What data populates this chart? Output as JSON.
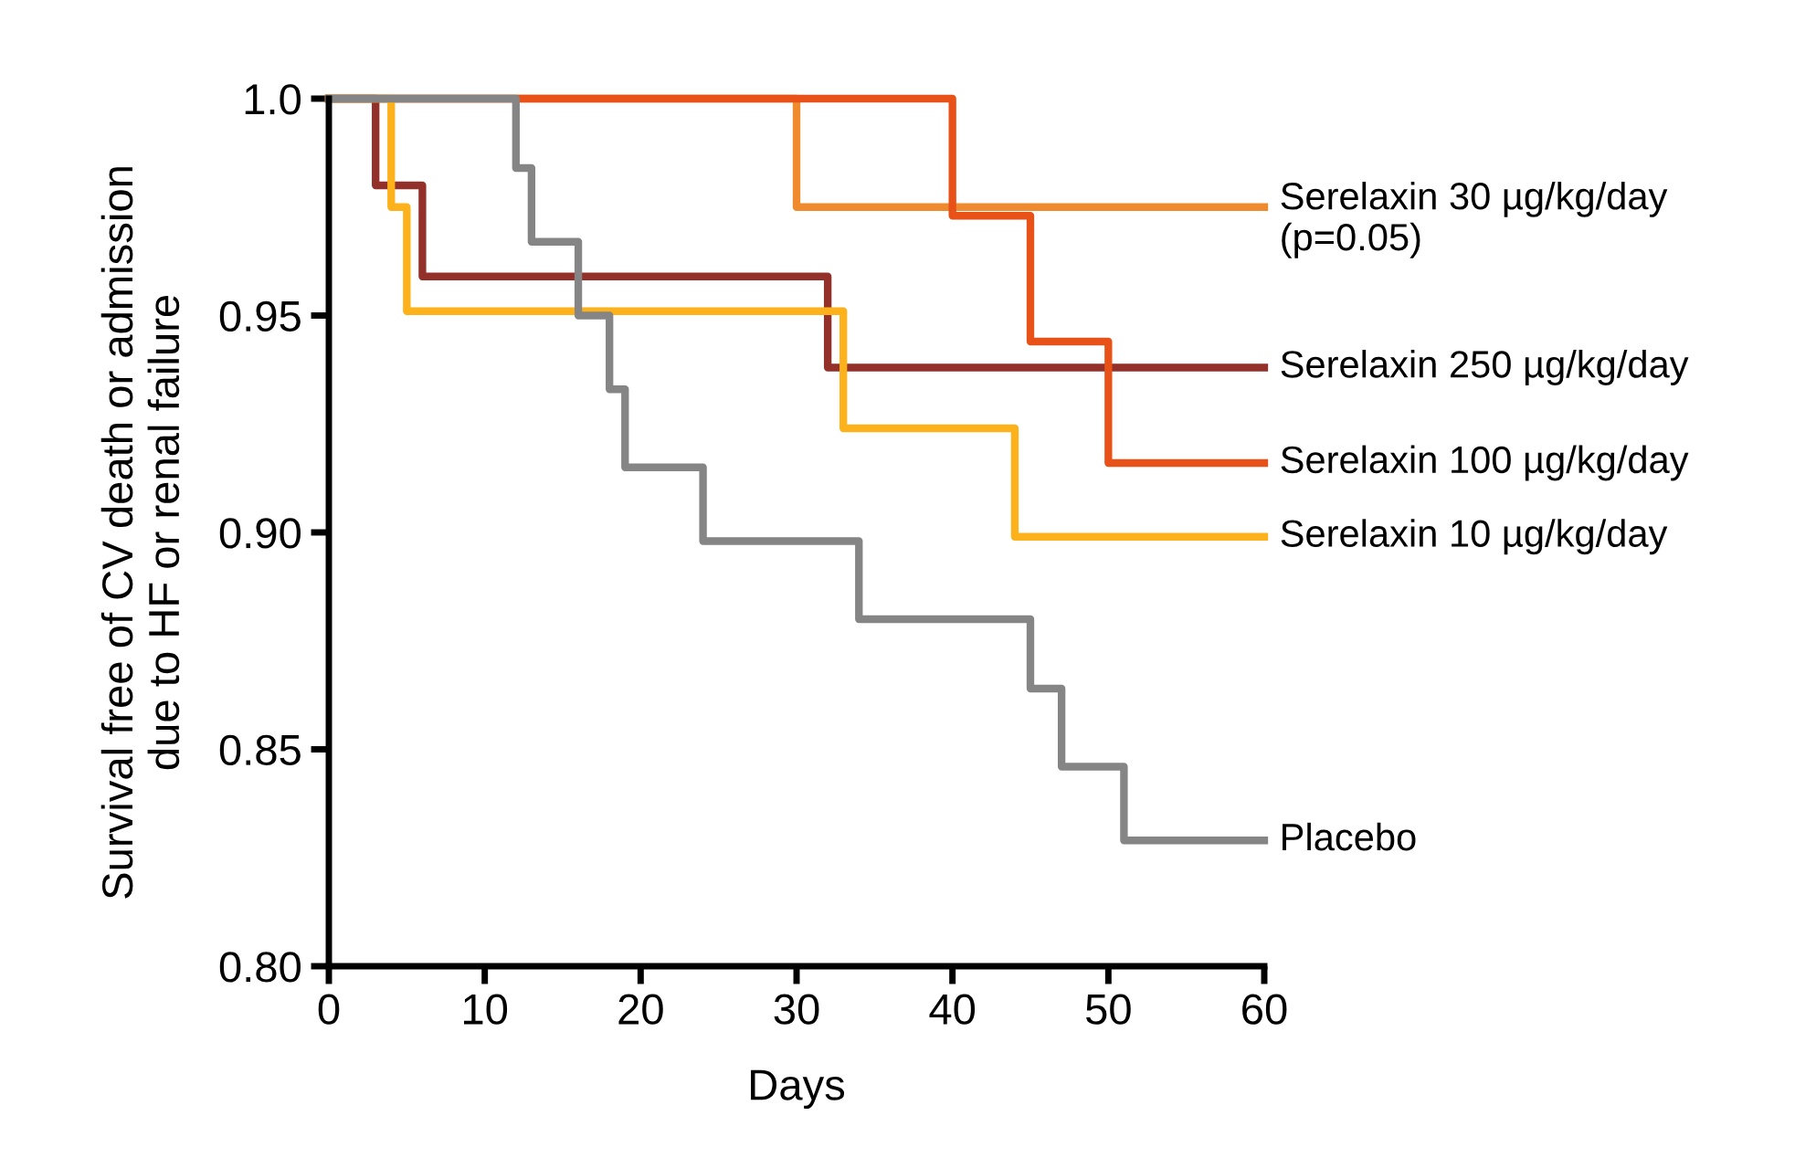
{
  "chart_data": {
    "type": "step",
    "xlabel": "Days",
    "ylabel": "Survival free of CV death or admission\ndue to HF or renal failure",
    "xlim": [
      0,
      60
    ],
    "ylim": [
      0.8,
      1.0
    ],
    "xticks": [
      0,
      10,
      20,
      30,
      40,
      50,
      60
    ],
    "yticks": [
      {
        "value": 0.8,
        "label": "0.80"
      },
      0.85,
      {
        "value": 0.9,
        "label": "0.90"
      },
      0.95,
      {
        "value": 1.0,
        "label": "1.0"
      }
    ],
    "grid": false,
    "legend": false,
    "line_style": "solid",
    "marker": "none",
    "series": [
      {
        "name": "Serelaxin 30 µg/kg/day\n(p=0.05)",
        "color": "#ef8a2f",
        "x": [
          0,
          30,
          60
        ],
        "values": [
          1.0,
          0.975,
          0.975
        ]
      },
      {
        "name": "Serelaxin 250 µg/kg/day",
        "color": "#93302a",
        "x": [
          0,
          3,
          6,
          32,
          60
        ],
        "values": [
          1.0,
          0.98,
          0.959,
          0.938,
          0.938
        ]
      },
      {
        "name": "Serelaxin 100 µg/kg/day",
        "color": "#e85118",
        "x": [
          0,
          40,
          45,
          50,
          60
        ],
        "values": [
          1.0,
          0.973,
          0.944,
          0.916,
          0.916
        ]
      },
      {
        "name": "Serelaxin 10 µg/kg/day",
        "color": "#fdb11b",
        "x": [
          0,
          4,
          5,
          33,
          44,
          60
        ],
        "values": [
          1.0,
          0.975,
          0.951,
          0.924,
          0.899,
          0.899
        ]
      },
      {
        "name": "Placebo",
        "color": "#858585",
        "x": [
          0,
          12,
          13,
          16,
          18,
          19,
          24,
          34,
          45,
          47,
          51,
          60
        ],
        "values": [
          1.0,
          0.984,
          0.967,
          0.95,
          0.933,
          0.915,
          0.898,
          0.88,
          0.864,
          0.846,
          0.829,
          0.829
        ]
      }
    ]
  }
}
